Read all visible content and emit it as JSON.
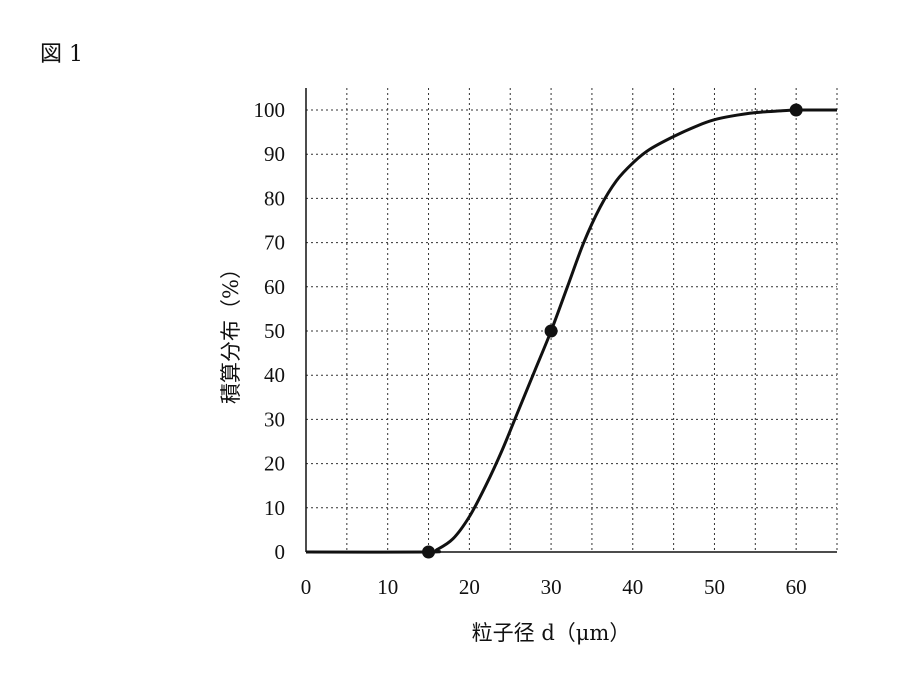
{
  "figure_label": "図 1",
  "chart_data": {
    "type": "line",
    "xlabel": "粒子径 d（μm）",
    "ylabel": "積算分布（%）",
    "xlim": [
      0,
      65
    ],
    "ylim": [
      0,
      100
    ],
    "x_ticks": [
      0,
      10,
      20,
      30,
      40,
      50,
      60
    ],
    "y_ticks": [
      0,
      10,
      20,
      30,
      40,
      50,
      60,
      70,
      80,
      90,
      100
    ],
    "grid": true,
    "grid_step_x": 5,
    "grid_step_y": 10,
    "line_color": "#111111",
    "series": [
      {
        "x": [
          0,
          15,
          16,
          18,
          20,
          22,
          24,
          26,
          28,
          30,
          32,
          34,
          36,
          38,
          40,
          42,
          45,
          48,
          50,
          52,
          55,
          58,
          60,
          62,
          65
        ],
        "y": [
          0,
          0,
          0.5,
          3,
          8,
          15,
          23,
          32,
          41,
          50,
          60,
          70,
          78,
          84,
          88,
          91,
          94,
          96.5,
          97.8,
          98.6,
          99.4,
          99.8,
          100,
          100,
          100
        ]
      }
    ],
    "markers": [
      {
        "x": 15,
        "y": 0
      },
      {
        "x": 30,
        "y": 50
      },
      {
        "x": 60,
        "y": 100
      }
    ]
  }
}
